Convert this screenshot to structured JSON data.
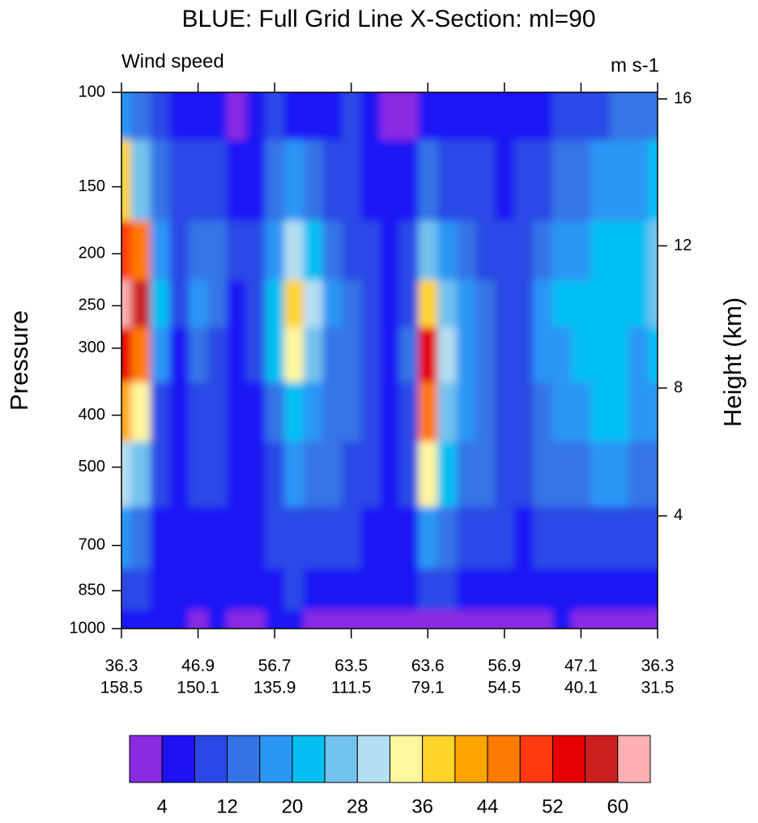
{
  "chart_data": {
    "type": "contour",
    "title": "BLUE: Full Grid Line X-Section: ml=90",
    "subtitle_left": "Wind speed",
    "subtitle_right": "m s-1",
    "ylabel": "Pressure",
    "y2label": "Height (km)",
    "ylog": true,
    "xlim": [
      0,
      7
    ],
    "ylim": [
      1000,
      100
    ],
    "xticks": [
      {
        "value": 0,
        "label": [
          "36.3",
          "158.5"
        ]
      },
      {
        "value": 1,
        "label": [
          "46.9",
          "150.1"
        ]
      },
      {
        "value": 2,
        "label": [
          "56.7",
          "135.9"
        ]
      },
      {
        "value": 3,
        "label": [
          "63.5",
          "111.5"
        ]
      },
      {
        "value": 4,
        "label": [
          "63.6",
          "79.1"
        ]
      },
      {
        "value": 5,
        "label": [
          "56.9",
          "54.5"
        ]
      },
      {
        "value": 6,
        "label": [
          "47.1",
          "40.1"
        ]
      },
      {
        "value": 7,
        "label": [
          "36.3",
          "31.5"
        ]
      }
    ],
    "yticks": [
      100,
      150,
      200,
      250,
      300,
      400,
      500,
      700,
      850,
      1000
    ],
    "y2ticks": [
      4,
      8,
      12,
      16
    ],
    "levels": [
      4,
      8,
      12,
      16,
      20,
      24,
      28,
      32,
      36,
      40,
      44,
      48,
      52,
      56,
      60
    ],
    "colorbar_ticks": [
      4,
      12,
      20,
      28,
      36,
      44,
      52,
      60
    ],
    "colors": [
      "#8a2be2",
      "#1e12f5",
      "#2b48e6",
      "#3474e6",
      "#2a96f5",
      "#06bff2",
      "#72c2ee",
      "#b4def2",
      "#fff79f",
      "#ffd42a",
      "#ffa500",
      "#ff7a00",
      "#ff3a10",
      "#e40000",
      "#cc2020",
      "#ffb0b0"
    ],
    "x": [
      0,
      0.25,
      0.5,
      0.75,
      1,
      1.25,
      1.5,
      1.75,
      2,
      2.25,
      2.5,
      2.75,
      3,
      3.25,
      3.5,
      3.75,
      4,
      4.25,
      4.5,
      4.75,
      5,
      5.25,
      5.5,
      5.75,
      6,
      6.25,
      6.5,
      6.75,
      7
    ],
    "y": [
      1000,
      850,
      700,
      500,
      400,
      300,
      250,
      200,
      150,
      100
    ],
    "z": [
      [
        6,
        4,
        6,
        4,
        3,
        4,
        3,
        3,
        4,
        4,
        3,
        3,
        2,
        3,
        3,
        3,
        3,
        2,
        3,
        3,
        2,
        2,
        3,
        4,
        3,
        2,
        2,
        2,
        3
      ],
      [
        10,
        8,
        6,
        6,
        4,
        6,
        5,
        5,
        6,
        8,
        6,
        6,
        6,
        4,
        5,
        5,
        10,
        8,
        6,
        6,
        5,
        4,
        6,
        6,
        6,
        6,
        4,
        4,
        6
      ],
      [
        16,
        12,
        6,
        6,
        6,
        6,
        6,
        5,
        8,
        10,
        10,
        8,
        8,
        6,
        6,
        6,
        16,
        14,
        10,
        8,
        8,
        6,
        8,
        8,
        10,
        10,
        10,
        8,
        8
      ],
      [
        30,
        24,
        8,
        6,
        8,
        8,
        6,
        6,
        10,
        16,
        14,
        12,
        10,
        8,
        6,
        8,
        34,
        20,
        14,
        12,
        10,
        8,
        12,
        14,
        14,
        16,
        16,
        14,
        14
      ],
      [
        40,
        34,
        10,
        6,
        10,
        8,
        6,
        6,
        14,
        22,
        18,
        14,
        12,
        8,
        6,
        10,
        46,
        24,
        16,
        12,
        10,
        10,
        14,
        16,
        18,
        20,
        20,
        16,
        18
      ],
      [
        52,
        46,
        18,
        6,
        14,
        10,
        6,
        8,
        20,
        32,
        24,
        14,
        12,
        8,
        6,
        12,
        52,
        30,
        18,
        12,
        10,
        10,
        16,
        18,
        20,
        22,
        22,
        18,
        22
      ],
      [
        60,
        56,
        20,
        8,
        18,
        12,
        6,
        8,
        22,
        38,
        28,
        16,
        12,
        8,
        6,
        10,
        38,
        26,
        16,
        12,
        10,
        10,
        16,
        20,
        20,
        22,
        22,
        20,
        24
      ],
      [
        50,
        46,
        16,
        8,
        14,
        12,
        8,
        8,
        18,
        30,
        22,
        12,
        10,
        8,
        6,
        8,
        24,
        18,
        12,
        10,
        8,
        10,
        14,
        18,
        18,
        20,
        22,
        20,
        26
      ],
      [
        38,
        26,
        12,
        8,
        10,
        8,
        6,
        6,
        12,
        16,
        12,
        8,
        8,
        5,
        4,
        6,
        12,
        10,
        8,
        8,
        6,
        8,
        10,
        12,
        14,
        16,
        18,
        16,
        20
      ],
      [
        18,
        14,
        8,
        6,
        5,
        5,
        3,
        5,
        8,
        6,
        5,
        6,
        10,
        6,
        3,
        2,
        6,
        4,
        5,
        6,
        6,
        7,
        7,
        8,
        8,
        10,
        12,
        12,
        14
      ]
    ]
  }
}
